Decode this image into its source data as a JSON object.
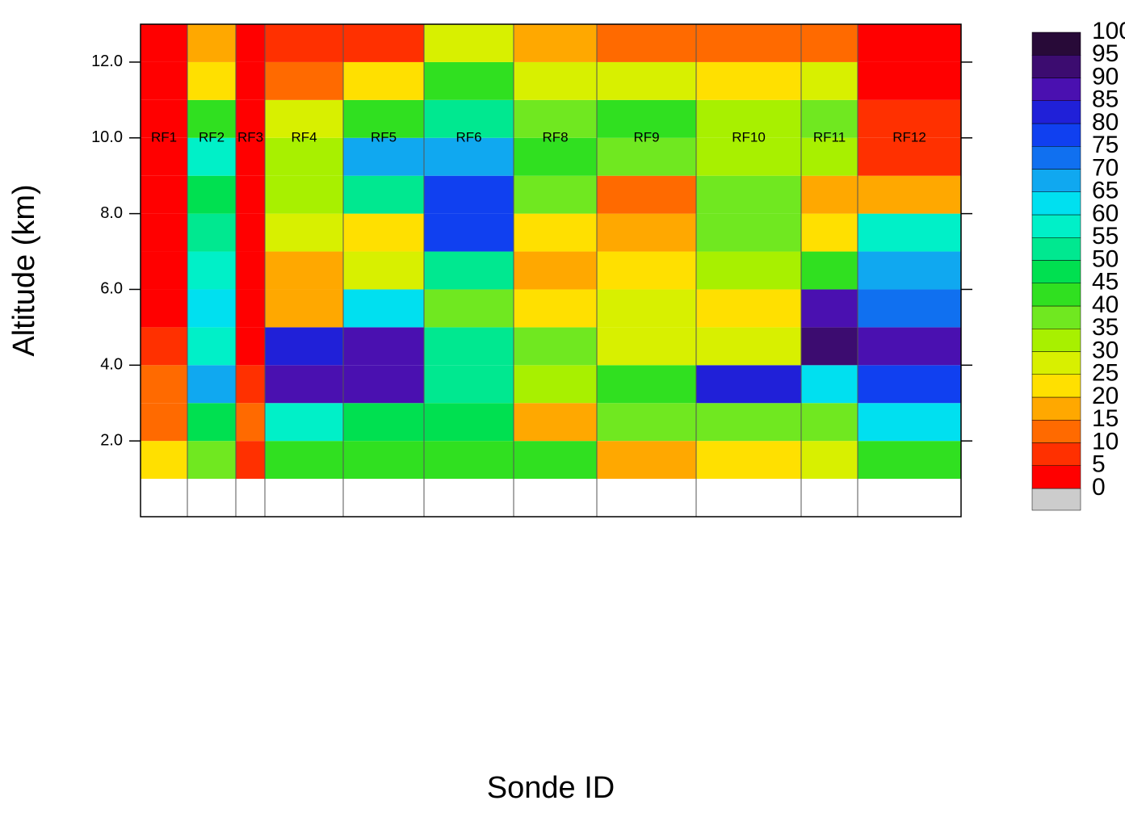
{
  "chart_data": {
    "type": "heatmap",
    "x_label": "Sonde ID",
    "y_label": "Altitude (km)",
    "categories": [
      "RF1",
      "RF2",
      "RF3",
      "RF4",
      "RF5",
      "RF6",
      "RF8",
      "RF9",
      "RF10",
      "RF11",
      "RF12"
    ],
    "bins": [
      0,
      1,
      2,
      3,
      4,
      5,
      6,
      7,
      8,
      9,
      10,
      11,
      12,
      13
    ],
    "values": [
      [
        null,
        20,
        10,
        10,
        5,
        3,
        3,
        3,
        3,
        3,
        3,
        3,
        3
      ],
      [
        null,
        35,
        45,
        65,
        55,
        60,
        55,
        50,
        45,
        55,
        40,
        20,
        15
      ],
      [
        null,
        5,
        10,
        5,
        3,
        3,
        3,
        3,
        3,
        3,
        3,
        3,
        3
      ],
      [
        null,
        40,
        55,
        85,
        80,
        15,
        15,
        25,
        30,
        30,
        25,
        10,
        5
      ],
      [
        null,
        40,
        45,
        85,
        85,
        60,
        25,
        20,
        50,
        65,
        40,
        20,
        8
      ],
      [
        null,
        40,
        45,
        50,
        50,
        35,
        50,
        75,
        75,
        65,
        50,
        40,
        25
      ],
      [
        null,
        40,
        15,
        30,
        35,
        20,
        15,
        20,
        35,
        40,
        35,
        25,
        15
      ],
      [
        null,
        15,
        35,
        40,
        25,
        25,
        20,
        15,
        10,
        35,
        40,
        25,
        10
      ],
      [
        null,
        20,
        35,
        80,
        25,
        20,
        30,
        35,
        35,
        30,
        30,
        20,
        10
      ],
      [
        null,
        25,
        35,
        60,
        90,
        85,
        40,
        20,
        15,
        30,
        35,
        25,
        10
      ],
      [
        null,
        40,
        60,
        75,
        85,
        70,
        65,
        55,
        15,
        5,
        5,
        3,
        3
      ]
    ],
    "ylim": [
      0,
      13
    ],
    "yticks": [
      {
        "value": 2,
        "label": "2.0"
      },
      {
        "value": 4,
        "label": "4.0"
      },
      {
        "value": 6,
        "label": "6.0"
      },
      {
        "value": 8,
        "label": "8.0"
      },
      {
        "value": 10,
        "label": "10.0"
      },
      {
        "value": 12,
        "label": "12.0"
      }
    ],
    "colorbar": {
      "levels": [
        0,
        5,
        10,
        15,
        20,
        25,
        30,
        35,
        40,
        45,
        50,
        55,
        60,
        65,
        70,
        75,
        80,
        85,
        90,
        95,
        100
      ],
      "colors": [
        "#ff0000",
        "#ff3000",
        "#ff6a00",
        "#ffa800",
        "#ffe000",
        "#d8f000",
        "#a8f000",
        "#70e820",
        "#30e020",
        "#00e050",
        "#00e890",
        "#00f0c8",
        "#00e0f0",
        "#10a8f0",
        "#1070f0",
        "#1040f0",
        "#2020d8",
        "#4a10b0",
        "#3c0c70",
        "#280a38"
      ],
      "missing_color": "#cccccc"
    }
  }
}
